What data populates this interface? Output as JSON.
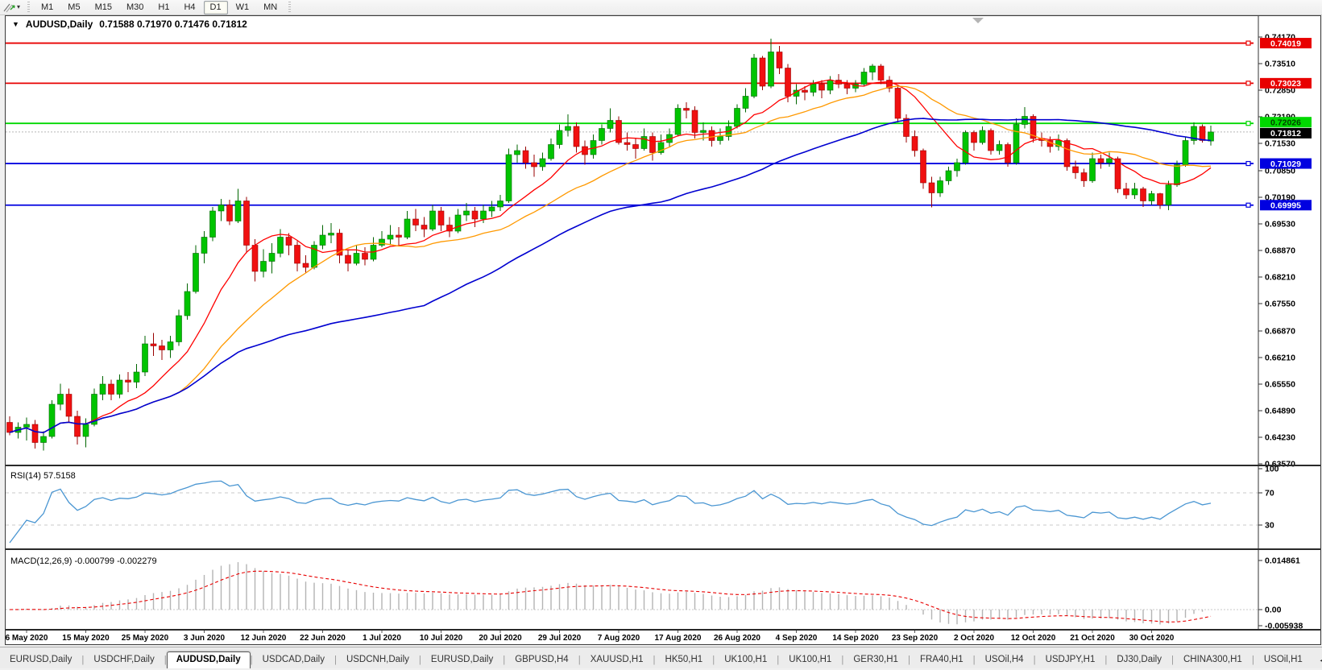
{
  "toolbar": {
    "tool_icon": "line-studies-icon",
    "dropdown_caret": "▾",
    "timeframes": [
      "M1",
      "M5",
      "M15",
      "M30",
      "H1",
      "H4",
      "D1",
      "W1",
      "MN"
    ],
    "active_timeframe": "D1"
  },
  "chart": {
    "collapse_caret": "▼",
    "symbol_title": "AUDUSD,Daily",
    "ohlc_text": "0.71588 0.71970 0.71476 0.71812",
    "price_axis_ticks": [
      "0.74170",
      "0.73510",
      "0.72850",
      "0.72190",
      "0.71530",
      "0.70850",
      "0.70190",
      "0.69530",
      "0.68870",
      "0.68210",
      "0.67550",
      "0.66870",
      "0.66210",
      "0.65550",
      "0.64890",
      "0.64230",
      "0.63570"
    ],
    "levels": [
      {
        "price": 0.74019,
        "label": "0.74019",
        "color": "#e80000",
        "text_color": "#ffffff"
      },
      {
        "price": 0.73023,
        "label": "0.73023",
        "color": "#e80000",
        "text_color": "#ffffff"
      },
      {
        "price": 0.72026,
        "label": "0.72026",
        "color": "#00d800",
        "text_color": "#004000"
      },
      {
        "price": 0.71029,
        "label": "0.71029",
        "color": "#0000e0",
        "text_color": "#ffffff"
      },
      {
        "price": 0.69995,
        "label": "0.69995",
        "color": "#0000e0",
        "text_color": "#ffffff"
      }
    ],
    "current_price": {
      "value": 0.71812,
      "label": "0.71812",
      "bg": "#000000",
      "text_color": "#ffffff",
      "line_color": "#b8b8b8"
    },
    "date_labels": [
      "6 May 2020",
      "15 May 2020",
      "25 May 2020",
      "3 Jun 2020",
      "12 Jun 2020",
      "22 Jun 2020",
      "1 Jul 2020",
      "10 Jul 2020",
      "20 Jul 2020",
      "29 Jul 2020",
      "7 Aug 2020",
      "17 Aug 2020",
      "26 Aug 2020",
      "4 Sep 2020",
      "14 Sep 2020",
      "23 Sep 2020",
      "2 Oct 2020",
      "12 Oct 2020",
      "21 Oct 2020",
      "30 Oct 2020"
    ]
  },
  "rsi": {
    "label": "RSI(14) 57.5158",
    "axis_ticks": [
      "100",
      "70",
      "30"
    ],
    "level_values": [
      70,
      30
    ],
    "line_color": "#4a96d2"
  },
  "macd": {
    "label": "MACD(12,26,9) -0.000799 -0.002279",
    "axis_ticks": [
      "0.014861",
      "0.00",
      "-0.005938"
    ],
    "axis_values": [
      0.014861,
      0.0,
      -0.005938
    ],
    "hist_color": "#b4b4b4",
    "signal_color": "#e80000"
  },
  "tabs": {
    "items": [
      "EURUSD,Daily",
      "USDCHF,Daily",
      "AUDUSD,Daily",
      "USDCAD,Daily",
      "USDCNH,Daily",
      "EURUSD,Daily",
      "GBPUSD,H4",
      "XAUUSD,H1",
      "HK50,H1",
      "UK100,H1",
      "UK100,H1",
      "GER30,H1",
      "FRA40,H1",
      "USOil,H4",
      "USDJPY,H1",
      "DJ30,Daily",
      "CHINA300,H1",
      "USOil,H1"
    ],
    "active_index": 2,
    "nav_left": "◄",
    "nav_right": "►"
  },
  "chart_data": {
    "type": "candlestick",
    "symbol": "AUDUSD",
    "timeframe": "Daily",
    "title": "AUDUSD,Daily 0.71588 0.71970 0.71476 0.71812",
    "open": 0.71588,
    "high": 0.7197,
    "low": 0.71476,
    "close": 0.71812,
    "ylim": [
      0.6353,
      0.7449
    ],
    "x_tick_labels": [
      "6 May 2020",
      "15 May 2020",
      "25 May 2020",
      "3 Jun 2020",
      "12 Jun 2020",
      "22 Jun 2020",
      "1 Jul 2020",
      "10 Jul 2020",
      "20 Jul 2020",
      "29 Jul 2020",
      "7 Aug 2020",
      "17 Aug 2020",
      "26 Aug 2020",
      "4 Sep 2020",
      "14 Sep 2020",
      "23 Sep 2020",
      "2 Oct 2020",
      "12 Oct 2020",
      "21 Oct 2020",
      "30 Oct 2020"
    ],
    "horizontal_levels": [
      0.74019,
      0.73023,
      0.72026,
      0.71029,
      0.69995
    ],
    "indicators": {
      "moving_averages": [
        {
          "period": 10,
          "color": "#ff0000"
        },
        {
          "period": 21,
          "color": "#ff9900"
        },
        {
          "period": 50,
          "color": "#0000d0"
        }
      ],
      "rsi": {
        "period": 14,
        "current": 57.5158,
        "range": [
          0,
          100
        ],
        "levels": [
          70,
          30
        ]
      },
      "macd": {
        "fast": 12,
        "slow": 26,
        "signal": 9,
        "current_macd": -0.000799,
        "current_signal": -0.002279,
        "range": [
          -0.005938,
          0.014861
        ]
      }
    },
    "colors": {
      "bull": "#00c400",
      "bull_edge": "#006600",
      "bear": "#f01010",
      "bear_edge": "#990000"
    },
    "candles": [
      [
        0.646,
        0.6475,
        0.6428,
        0.6435
      ],
      [
        0.6435,
        0.646,
        0.642,
        0.6448
      ],
      [
        0.6448,
        0.6472,
        0.6415,
        0.6455
      ],
      [
        0.6455,
        0.6466,
        0.6395,
        0.641
      ],
      [
        0.641,
        0.6438,
        0.639,
        0.6425
      ],
      [
        0.6425,
        0.6515,
        0.642,
        0.6505
      ],
      [
        0.6505,
        0.6556,
        0.649,
        0.653
      ],
      [
        0.653,
        0.6544,
        0.6462,
        0.6475
      ],
      [
        0.6475,
        0.6489,
        0.6405,
        0.6425
      ],
      [
        0.6425,
        0.647,
        0.6398,
        0.6455
      ],
      [
        0.6455,
        0.6544,
        0.645,
        0.653
      ],
      [
        0.653,
        0.6575,
        0.6515,
        0.6555
      ],
      [
        0.6555,
        0.6566,
        0.6515,
        0.653
      ],
      [
        0.653,
        0.6579,
        0.652,
        0.6565
      ],
      [
        0.6565,
        0.6585,
        0.6535,
        0.656
      ],
      [
        0.656,
        0.6605,
        0.6545,
        0.6585
      ],
      [
        0.6585,
        0.6675,
        0.6575,
        0.6655
      ],
      [
        0.6655,
        0.6682,
        0.6625,
        0.665
      ],
      [
        0.665,
        0.6665,
        0.6615,
        0.664
      ],
      [
        0.664,
        0.6675,
        0.662,
        0.666
      ],
      [
        0.666,
        0.674,
        0.665,
        0.6725
      ],
      [
        0.6725,
        0.6805,
        0.6715,
        0.6785
      ],
      [
        0.6785,
        0.69,
        0.678,
        0.688
      ],
      [
        0.688,
        0.6935,
        0.6855,
        0.692
      ],
      [
        0.692,
        0.6995,
        0.691,
        0.6985
      ],
      [
        0.6985,
        0.7015,
        0.696,
        0.7
      ],
      [
        0.7,
        0.7013,
        0.695,
        0.696
      ],
      [
        0.696,
        0.704,
        0.6955,
        0.701
      ],
      [
        0.701,
        0.702,
        0.688,
        0.69
      ],
      [
        0.69,
        0.6915,
        0.681,
        0.6835
      ],
      [
        0.6835,
        0.689,
        0.682,
        0.686
      ],
      [
        0.686,
        0.6905,
        0.683,
        0.688
      ],
      [
        0.688,
        0.694,
        0.687,
        0.692
      ],
      [
        0.692,
        0.693,
        0.6875,
        0.69
      ],
      [
        0.69,
        0.691,
        0.6835,
        0.6855
      ],
      [
        0.6855,
        0.6875,
        0.683,
        0.6845
      ],
      [
        0.6845,
        0.691,
        0.684,
        0.69
      ],
      [
        0.69,
        0.695,
        0.689,
        0.6925
      ],
      [
        0.6925,
        0.6955,
        0.6905,
        0.693
      ],
      [
        0.693,
        0.694,
        0.6855,
        0.6875
      ],
      [
        0.6875,
        0.689,
        0.6835,
        0.6855
      ],
      [
        0.6855,
        0.69,
        0.685,
        0.688
      ],
      [
        0.688,
        0.6895,
        0.685,
        0.6865
      ],
      [
        0.6865,
        0.692,
        0.686,
        0.69
      ],
      [
        0.69,
        0.6935,
        0.6895,
        0.6915
      ],
      [
        0.6915,
        0.695,
        0.69,
        0.6925
      ],
      [
        0.6925,
        0.6945,
        0.69,
        0.692
      ],
      [
        0.692,
        0.6985,
        0.6915,
        0.6965
      ],
      [
        0.6965,
        0.699,
        0.6935,
        0.695
      ],
      [
        0.695,
        0.697,
        0.692,
        0.694
      ],
      [
        0.694,
        0.7,
        0.6935,
        0.6985
      ],
      [
        0.6985,
        0.6995,
        0.6935,
        0.695
      ],
      [
        0.695,
        0.697,
        0.692,
        0.6935
      ],
      [
        0.6935,
        0.699,
        0.693,
        0.6975
      ],
      [
        0.6975,
        0.7005,
        0.696,
        0.6985
      ],
      [
        0.6985,
        0.6995,
        0.6945,
        0.6965
      ],
      [
        0.6965,
        0.7,
        0.6955,
        0.6985
      ],
      [
        0.6985,
        0.701,
        0.697,
        0.6995
      ],
      [
        0.6995,
        0.7025,
        0.6985,
        0.701
      ],
      [
        0.701,
        0.714,
        0.7005,
        0.7125
      ],
      [
        0.7125,
        0.715,
        0.7105,
        0.7135
      ],
      [
        0.7135,
        0.7145,
        0.709,
        0.7105
      ],
      [
        0.7105,
        0.7125,
        0.707,
        0.7095
      ],
      [
        0.7095,
        0.713,
        0.7085,
        0.7115
      ],
      [
        0.7115,
        0.7165,
        0.711,
        0.715
      ],
      [
        0.715,
        0.72,
        0.714,
        0.7185
      ],
      [
        0.7185,
        0.7225,
        0.717,
        0.7195
      ],
      [
        0.7195,
        0.7205,
        0.713,
        0.7145
      ],
      [
        0.7145,
        0.716,
        0.71,
        0.7125
      ],
      [
        0.7125,
        0.7175,
        0.7115,
        0.716
      ],
      [
        0.716,
        0.72,
        0.715,
        0.719
      ],
      [
        0.719,
        0.724,
        0.718,
        0.721
      ],
      [
        0.721,
        0.722,
        0.715,
        0.7155
      ],
      [
        0.7155,
        0.718,
        0.7135,
        0.715
      ],
      [
        0.715,
        0.7165,
        0.7115,
        0.714
      ],
      [
        0.714,
        0.719,
        0.7135,
        0.717
      ],
      [
        0.717,
        0.718,
        0.711,
        0.713
      ],
      [
        0.713,
        0.7175,
        0.7125,
        0.7155
      ],
      [
        0.7155,
        0.719,
        0.7145,
        0.7175
      ],
      [
        0.7175,
        0.725,
        0.717,
        0.724
      ],
      [
        0.724,
        0.7255,
        0.7215,
        0.7235
      ],
      [
        0.7235,
        0.7245,
        0.7165,
        0.718
      ],
      [
        0.718,
        0.7205,
        0.716,
        0.7185
      ],
      [
        0.7185,
        0.7195,
        0.7145,
        0.716
      ],
      [
        0.716,
        0.719,
        0.715,
        0.717
      ],
      [
        0.717,
        0.721,
        0.716,
        0.7195
      ],
      [
        0.7195,
        0.725,
        0.719,
        0.724
      ],
      [
        0.724,
        0.729,
        0.723,
        0.727
      ],
      [
        0.727,
        0.7375,
        0.7265,
        0.7365
      ],
      [
        0.7365,
        0.737,
        0.7285,
        0.7295
      ],
      [
        0.7295,
        0.7413,
        0.729,
        0.738
      ],
      [
        0.738,
        0.7395,
        0.7325,
        0.734
      ],
      [
        0.734,
        0.735,
        0.7255,
        0.727
      ],
      [
        0.727,
        0.73,
        0.725,
        0.7285
      ],
      [
        0.7285,
        0.7295,
        0.726,
        0.728
      ],
      [
        0.728,
        0.731,
        0.727,
        0.73
      ],
      [
        0.73,
        0.731,
        0.7265,
        0.7285
      ],
      [
        0.7285,
        0.732,
        0.7275,
        0.731
      ],
      [
        0.731,
        0.7325,
        0.729,
        0.73
      ],
      [
        0.73,
        0.731,
        0.7275,
        0.729
      ],
      [
        0.729,
        0.731,
        0.728,
        0.73
      ],
      [
        0.73,
        0.734,
        0.7295,
        0.733
      ],
      [
        0.733,
        0.735,
        0.731,
        0.7345
      ],
      [
        0.7345,
        0.735,
        0.73,
        0.731
      ],
      [
        0.731,
        0.732,
        0.728,
        0.729
      ],
      [
        0.729,
        0.7295,
        0.7205,
        0.7215
      ],
      [
        0.7215,
        0.7225,
        0.7155,
        0.717
      ],
      [
        0.717,
        0.7185,
        0.712,
        0.7135
      ],
      [
        0.7135,
        0.714,
        0.704,
        0.7055
      ],
      [
        0.7055,
        0.707,
        0.6994,
        0.703
      ],
      [
        0.703,
        0.707,
        0.702,
        0.706
      ],
      [
        0.706,
        0.7095,
        0.705,
        0.7085
      ],
      [
        0.7085,
        0.7115,
        0.707,
        0.7105
      ],
      [
        0.7105,
        0.7185,
        0.71,
        0.718
      ],
      [
        0.718,
        0.7185,
        0.7135,
        0.7155
      ],
      [
        0.7155,
        0.7195,
        0.715,
        0.7185
      ],
      [
        0.7185,
        0.719,
        0.7125,
        0.7135
      ],
      [
        0.7135,
        0.716,
        0.7125,
        0.715
      ],
      [
        0.715,
        0.7155,
        0.7095,
        0.7105
      ],
      [
        0.7105,
        0.7215,
        0.71,
        0.72
      ],
      [
        0.72,
        0.7243,
        0.719,
        0.722
      ],
      [
        0.722,
        0.7225,
        0.7155,
        0.7165
      ],
      [
        0.7165,
        0.718,
        0.7145,
        0.716
      ],
      [
        0.716,
        0.717,
        0.713,
        0.7145
      ],
      [
        0.7145,
        0.7175,
        0.7135,
        0.716
      ],
      [
        0.716,
        0.7165,
        0.7085,
        0.7095
      ],
      [
        0.7095,
        0.711,
        0.7065,
        0.708
      ],
      [
        0.708,
        0.709,
        0.7045,
        0.706
      ],
      [
        0.706,
        0.713,
        0.7055,
        0.7115
      ],
      [
        0.7115,
        0.7125,
        0.709,
        0.7105
      ],
      [
        0.7105,
        0.713,
        0.7095,
        0.7115
      ],
      [
        0.7115,
        0.712,
        0.703,
        0.704
      ],
      [
        0.704,
        0.7055,
        0.7015,
        0.7025
      ],
      [
        0.7025,
        0.7055,
        0.7015,
        0.704
      ],
      [
        0.704,
        0.7045,
        0.6995,
        0.701
      ],
      [
        0.701,
        0.7035,
        0.7,
        0.7028
      ],
      [
        0.7028,
        0.703,
        0.699,
        0.7
      ],
      [
        0.7,
        0.706,
        0.6987,
        0.705
      ],
      [
        0.705,
        0.711,
        0.7045,
        0.71
      ],
      [
        0.71,
        0.717,
        0.7095,
        0.716
      ],
      [
        0.716,
        0.7205,
        0.715,
        0.7195
      ],
      [
        0.7195,
        0.72,
        0.7155,
        0.716
      ],
      [
        0.71588,
        0.7197,
        0.71476,
        0.71812
      ]
    ]
  }
}
